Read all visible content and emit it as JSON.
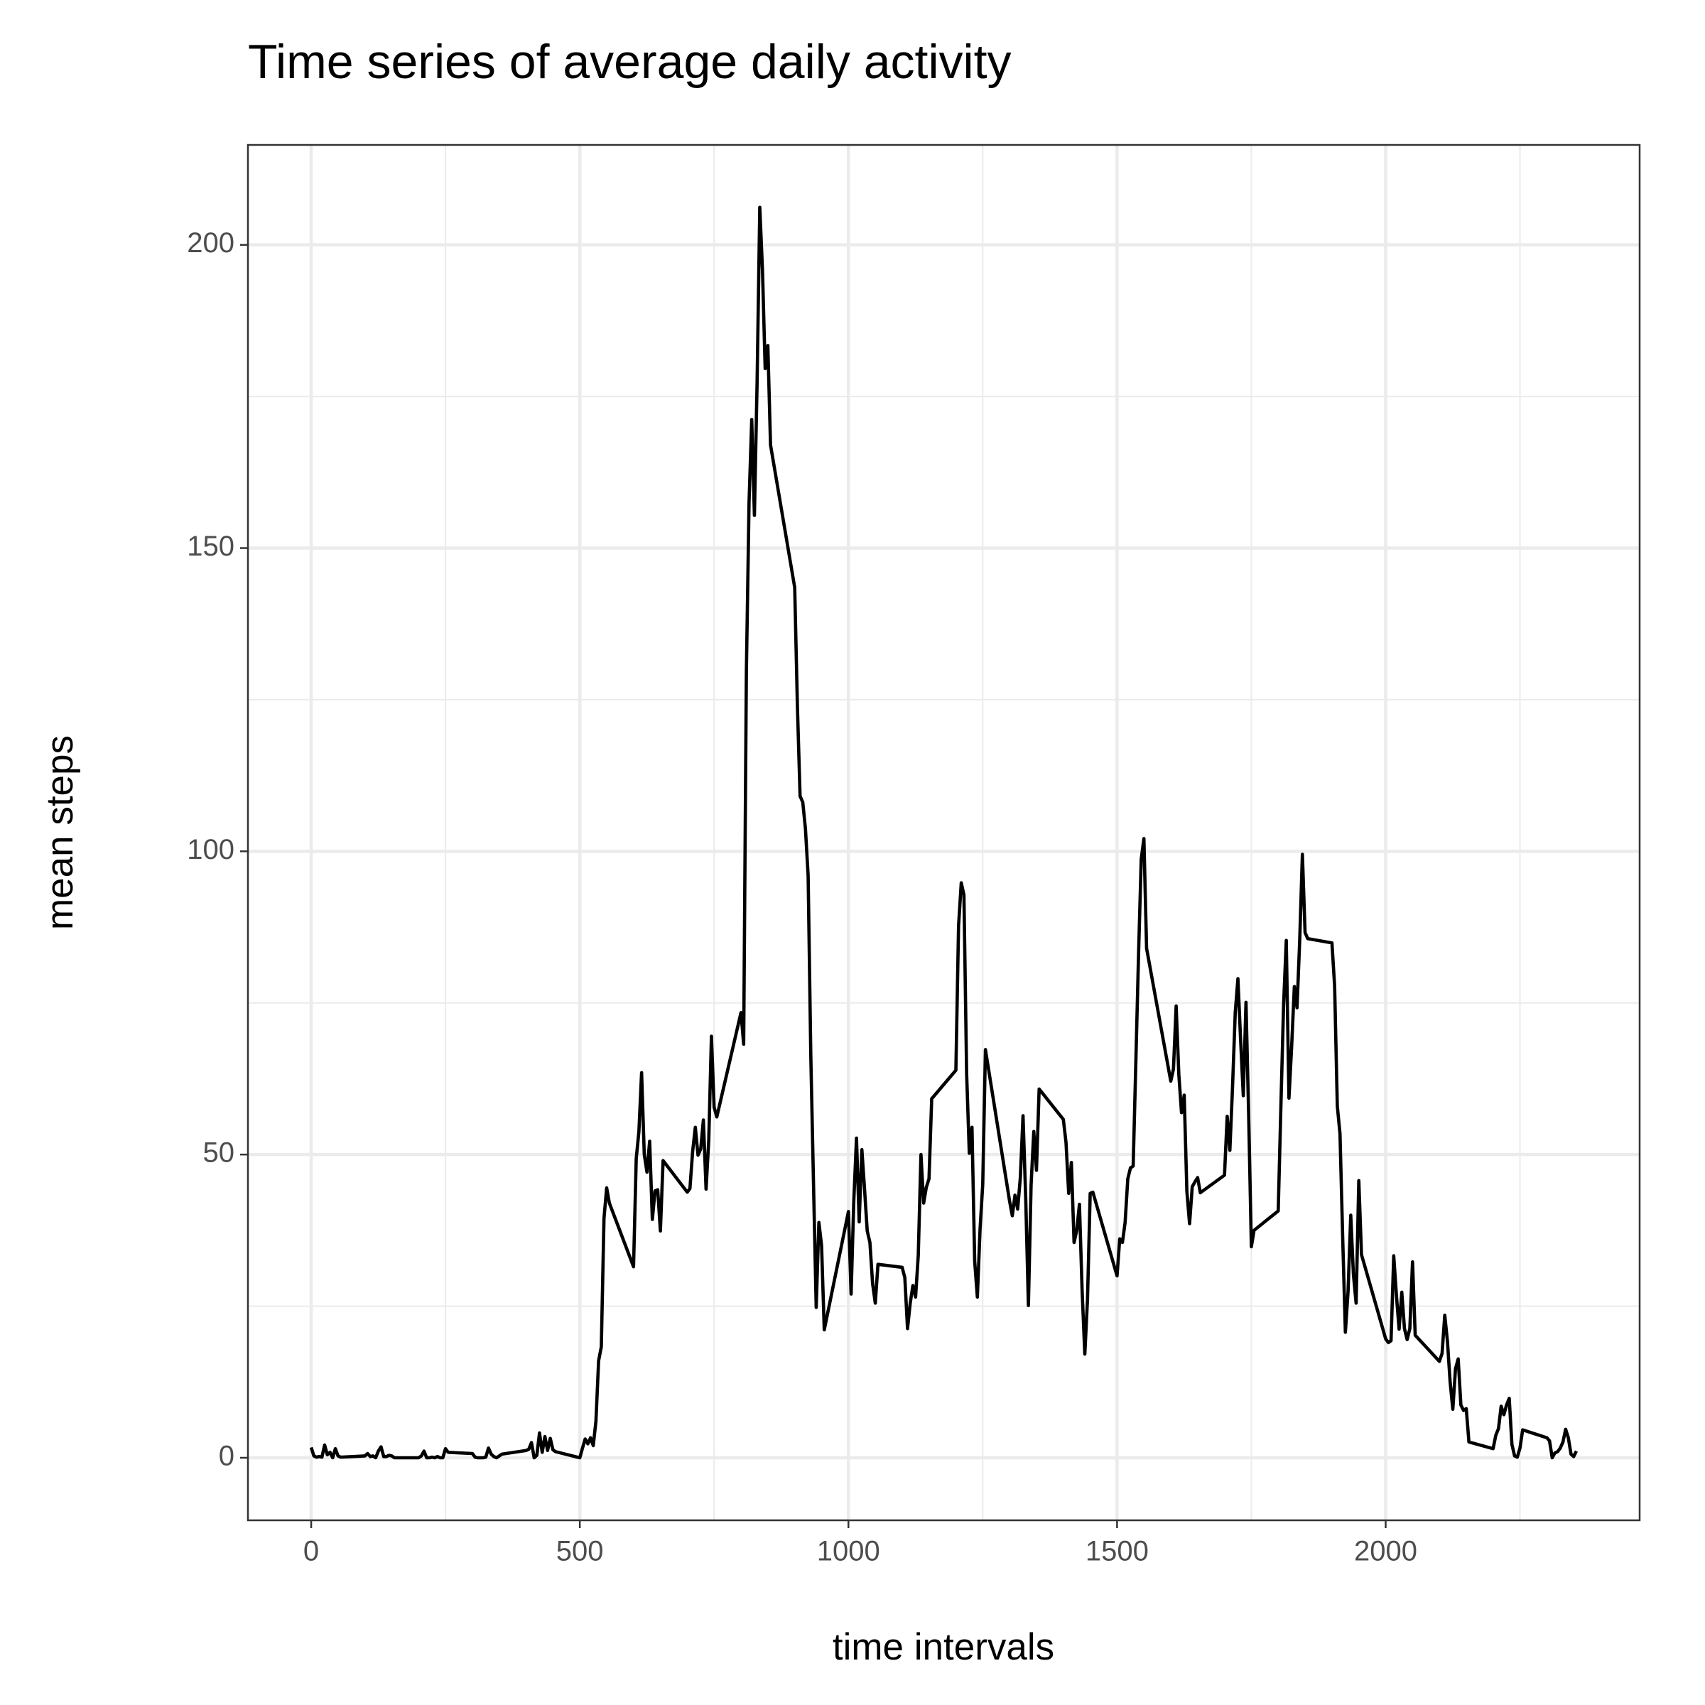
{
  "chart_data": {
    "type": "line",
    "title": "Time series of average daily activity",
    "x_label": "time intervals",
    "y_label": "mean steps",
    "color": "#000000",
    "grid": true,
    "xlim": [
      -117.75,
      2472.75
    ],
    "xticks": [
      0,
      500,
      1000,
      1500,
      2000
    ],
    "ylim": [
      -10.31,
      216.48
    ],
    "yticks": [
      0,
      50,
      100,
      150,
      200
    ],
    "x": [
      0,
      5,
      10,
      15,
      20,
      25,
      30,
      35,
      40,
      45,
      50,
      55,
      100,
      105,
      110,
      115,
      120,
      125,
      130,
      135,
      140,
      145,
      150,
      155,
      200,
      205,
      210,
      215,
      220,
      225,
      230,
      235,
      240,
      245,
      250,
      255,
      300,
      305,
      310,
      315,
      320,
      325,
      330,
      335,
      340,
      345,
      350,
      355,
      400,
      405,
      410,
      415,
      420,
      425,
      430,
      435,
      440,
      445,
      450,
      455,
      500,
      505,
      510,
      515,
      520,
      525,
      530,
      535,
      540,
      545,
      550,
      555,
      600,
      605,
      610,
      615,
      620,
      625,
      630,
      635,
      640,
      645,
      650,
      655,
      700,
      705,
      710,
      715,
      720,
      725,
      730,
      735,
      740,
      745,
      750,
      755,
      800,
      805,
      810,
      815,
      820,
      825,
      830,
      835,
      840,
      845,
      850,
      855,
      900,
      905,
      910,
      915,
      920,
      925,
      930,
      935,
      940,
      945,
      950,
      955,
      1000,
      1005,
      1010,
      1015,
      1020,
      1025,
      1030,
      1035,
      1040,
      1045,
      1050,
      1055,
      1100,
      1105,
      1110,
      1115,
      1120,
      1125,
      1130,
      1135,
      1140,
      1145,
      1150,
      1155,
      1200,
      1205,
      1210,
      1215,
      1220,
      1225,
      1230,
      1235,
      1240,
      1245,
      1250,
      1255,
      1300,
      1305,
      1310,
      1315,
      1320,
      1325,
      1330,
      1335,
      1340,
      1345,
      1350,
      1355,
      1400,
      1405,
      1410,
      1415,
      1420,
      1425,
      1430,
      1435,
      1440,
      1445,
      1450,
      1455,
      1500,
      1505,
      1510,
      1515,
      1520,
      1525,
      1530,
      1535,
      1540,
      1545,
      1550,
      1555,
      1600,
      1605,
      1610,
      1615,
      1620,
      1625,
      1630,
      1635,
      1640,
      1645,
      1650,
      1655,
      1700,
      1705,
      1710,
      1715,
      1720,
      1725,
      1730,
      1735,
      1740,
      1745,
      1750,
      1755,
      1800,
      1805,
      1810,
      1815,
      1820,
      1825,
      1830,
      1835,
      1840,
      1845,
      1850,
      1855,
      1900,
      1905,
      1910,
      1915,
      1920,
      1925,
      1930,
      1935,
      1940,
      1945,
      1950,
      1955,
      2000,
      2005,
      2010,
      2015,
      2020,
      2025,
      2030,
      2035,
      2040,
      2045,
      2050,
      2055,
      2100,
      2105,
      2110,
      2115,
      2120,
      2125,
      2130,
      2135,
      2140,
      2145,
      2150,
      2155,
      2200,
      2205,
      2210,
      2215,
      2220,
      2225,
      2230,
      2235,
      2240,
      2245,
      2250,
      2255,
      2300,
      2305,
      2310,
      2315,
      2320,
      2325,
      2330,
      2335,
      2340,
      2345,
      2350,
      2355
    ],
    "values": [
      1.7,
      0.3,
      0.1,
      0.2,
      0.1,
      2.1,
      0.5,
      0.9,
      0,
      1.5,
      0.3,
      0.1,
      0.3,
      0.7,
      0.2,
      0.3,
      0,
      1.1,
      1.8,
      0.2,
      0.2,
      0.4,
      0.3,
      0,
      0,
      0.3,
      1.1,
      0,
      0,
      0.1,
      0,
      0.2,
      0,
      0,
      1.5,
      0.9,
      0.7,
      0.1,
      0,
      0,
      0,
      0.1,
      1.6,
      0.6,
      0.2,
      0,
      0.3,
      0.6,
      1.2,
      1.4,
      2.5,
      0,
      0.4,
      4.1,
      0.9,
      3.5,
      1.2,
      3.2,
      1.3,
      1.0,
      0,
      1.6,
      3.1,
      2.3,
      3.3,
      2.0,
      6.0,
      16.0,
      18.3,
      39.5,
      44.5,
      42.0,
      31.5,
      49.3,
      53.8,
      63.5,
      50.0,
      47.1,
      52.2,
      39.3,
      44.0,
      44.2,
      37.4,
      49.0,
      43.8,
      44.4,
      50.5,
      54.5,
      49.9,
      50.9,
      55.7,
      44.3,
      52.3,
      69.5,
      57.8,
      56.2,
      73.4,
      68.2,
      129.4,
      157.5,
      171.2,
      155.4,
      177.3,
      206.2,
      195.9,
      179.6,
      183.4,
      167.0,
      143.5,
      124.0,
      109.1,
      108.1,
      103.7,
      96.0,
      66.2,
      45.2,
      24.8,
      38.8,
      35.0,
      21.1,
      40.6,
      27.0,
      42.4,
      52.7,
      38.9,
      50.8,
      44.3,
      37.4,
      35.5,
      28.7,
      25.5,
      31.9,
      31.4,
      29.7,
      21.3,
      25.5,
      28.4,
      26.5,
      33.4,
      50.0,
      42.0,
      44.6,
      46.0,
      59.2,
      63.9,
      87.7,
      94.8,
      92.8,
      63.4,
      50.2,
      54.5,
      32.4,
      26.5,
      37.7,
      45.1,
      67.3,
      42.3,
      39.9,
      43.3,
      41.0,
      46.2,
      56.4,
      42.8,
      25.1,
      45.0,
      53.8,
      47.4,
      60.8,
      55.8,
      52.0,
      43.6,
      48.7,
      35.5,
      37.5,
      41.8,
      27.5,
      17.1,
      26.1,
      43.6,
      43.8,
      30.0,
      36.1,
      35.5,
      38.8,
      46.0,
      47.8,
      48.1,
      65.3,
      82.9,
      98.7,
      102.1,
      84.0,
      62.1,
      64.1,
      74.5,
      63.2,
      56.9,
      59.8,
      43.9,
      38.6,
      44.7,
      45.5,
      46.2,
      43.7,
      46.6,
      56.3,
      50.7,
      61.2,
      73.4,
      79.0,
      68.9,
      59.7,
      75.1,
      56.5,
      34.8,
      37.5,
      40.7,
      58.0,
      74.7,
      85.3,
      59.3,
      67.8,
      77.7,
      74.2,
      85.3,
      99.5,
      86.6,
      85.6,
      84.9,
      77.8,
      58.0,
      53.4,
      36.3,
      20.7,
      27.4,
      40.0,
      30.2,
      25.5,
      45.7,
      33.5,
      19.6,
      19.0,
      19.3,
      33.3,
      26.8,
      21.2,
      27.3,
      21.3,
      19.5,
      21.3,
      32.3,
      20.2,
      15.9,
      17.2,
      23.5,
      19.2,
      12.5,
      8.0,
      14.7,
      16.3,
      8.7,
      7.8,
      8.1,
      2.6,
      1.5,
      3.7,
      4.8,
      8.5,
      7.1,
      8.7,
      9.8,
      2.2,
      0.3,
      0.1,
      1.6,
      4.6,
      3.3,
      2.8,
      0,
      0.8,
      1.0,
      1.6,
      2.6,
      4.7,
      3.3,
      0.6,
      0.2,
      1.1
    ]
  }
}
